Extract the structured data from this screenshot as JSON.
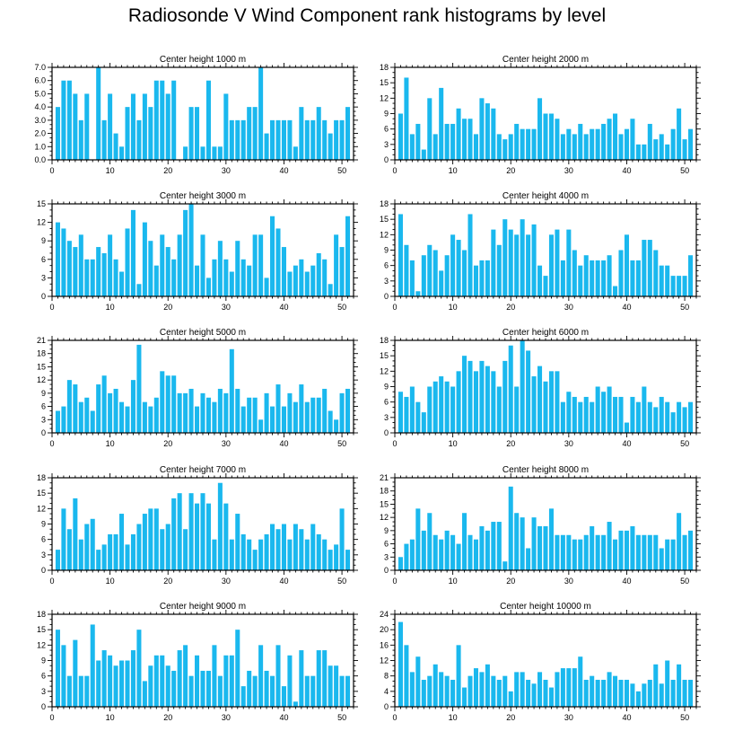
{
  "title": "Radiosonde V Wind Component rank histograms by level",
  "colors": {
    "bar": "#1ab8ee",
    "axis": "#000000",
    "background": "#ffffff"
  },
  "chart_data": [
    {
      "type": "bar",
      "title": "Center height 1000 m",
      "xlabel": "",
      "ylabel": "",
      "xlim": [
        0,
        52
      ],
      "ylim": [
        0,
        7
      ],
      "xticks": [
        0,
        10,
        20,
        30,
        40,
        50
      ],
      "xtick_labels": [
        "0",
        "10",
        "20",
        "30",
        "40",
        "50"
      ],
      "yticks": [
        0,
        1,
        2,
        3,
        4,
        5,
        6,
        7
      ],
      "ytick_labels": [
        "0.0",
        "1.0",
        "2.0",
        "3.0",
        "4.0",
        "5.0",
        "6.0",
        "7.0"
      ],
      "categories": [
        1,
        2,
        3,
        4,
        5,
        6,
        7,
        8,
        9,
        10,
        11,
        12,
        13,
        14,
        15,
        16,
        17,
        18,
        19,
        20,
        21,
        22,
        23,
        24,
        25,
        26,
        27,
        28,
        29,
        30,
        31,
        32,
        33,
        34,
        35,
        36,
        37,
        38,
        39,
        40,
        41,
        42,
        43,
        44,
        45,
        46,
        47,
        48,
        49,
        50,
        51
      ],
      "values": [
        4,
        6,
        6,
        5,
        3,
        5,
        0,
        7,
        3,
        5,
        2,
        1,
        4,
        5,
        3,
        5,
        4,
        6,
        6,
        5,
        6,
        0,
        1,
        4,
        4,
        1,
        6,
        1,
        1,
        5,
        3,
        3,
        3,
        4,
        4,
        7,
        2,
        3,
        3,
        3,
        3,
        1,
        4,
        3,
        3,
        4,
        3,
        2,
        3,
        3,
        4
      ]
    },
    {
      "type": "bar",
      "title": "Center height 2000 m",
      "xlabel": "",
      "ylabel": "",
      "xlim": [
        0,
        52
      ],
      "ylim": [
        0,
        18
      ],
      "xticks": [
        0,
        10,
        20,
        30,
        40,
        50
      ],
      "xtick_labels": [
        "0",
        "10",
        "20",
        "30",
        "40",
        "50"
      ],
      "yticks": [
        0,
        3,
        6,
        9,
        12,
        15,
        18
      ],
      "ytick_labels": [
        "0",
        "3",
        "6",
        "9",
        "12",
        "15",
        "18"
      ],
      "categories": [
        1,
        2,
        3,
        4,
        5,
        6,
        7,
        8,
        9,
        10,
        11,
        12,
        13,
        14,
        15,
        16,
        17,
        18,
        19,
        20,
        21,
        22,
        23,
        24,
        25,
        26,
        27,
        28,
        29,
        30,
        31,
        32,
        33,
        34,
        35,
        36,
        37,
        38,
        39,
        40,
        41,
        42,
        43,
        44,
        45,
        46,
        47,
        48,
        49,
        50,
        51
      ],
      "values": [
        9,
        16,
        5,
        7,
        2,
        12,
        5,
        14,
        7,
        7,
        10,
        8,
        8,
        5,
        12,
        11,
        10,
        5,
        4,
        5,
        7,
        6,
        6,
        6,
        12,
        9,
        9,
        8,
        5,
        6,
        5,
        7,
        5,
        6,
        6,
        7,
        8,
        9,
        5,
        6,
        8,
        3,
        3,
        7,
        4,
        5,
        3,
        6,
        10,
        4,
        6
      ]
    },
    {
      "type": "bar",
      "title": "Center height 3000 m",
      "xlabel": "",
      "ylabel": "",
      "xlim": [
        0,
        52
      ],
      "ylim": [
        0,
        15
      ],
      "xticks": [
        0,
        10,
        20,
        30,
        40,
        50
      ],
      "xtick_labels": [
        "0",
        "10",
        "20",
        "30",
        "40",
        "50"
      ],
      "yticks": [
        0,
        3,
        6,
        9,
        12,
        15
      ],
      "ytick_labels": [
        "0",
        "3",
        "6",
        "9",
        "12",
        "15"
      ],
      "categories": [
        1,
        2,
        3,
        4,
        5,
        6,
        7,
        8,
        9,
        10,
        11,
        12,
        13,
        14,
        15,
        16,
        17,
        18,
        19,
        20,
        21,
        22,
        23,
        24,
        25,
        26,
        27,
        28,
        29,
        30,
        31,
        32,
        33,
        34,
        35,
        36,
        37,
        38,
        39,
        40,
        41,
        42,
        43,
        44,
        45,
        46,
        47,
        48,
        49,
        50,
        51
      ],
      "values": [
        12,
        11,
        9,
        8,
        10,
        6,
        6,
        8,
        7,
        10,
        6,
        4,
        11,
        14,
        2,
        12,
        9,
        5,
        10,
        8,
        6,
        10,
        14,
        15,
        5,
        10,
        3,
        6,
        9,
        6,
        4,
        9,
        6,
        5,
        10,
        10,
        3,
        13,
        11,
        8,
        4,
        5,
        6,
        4,
        5,
        7,
        6,
        2,
        10,
        8,
        13
      ]
    },
    {
      "type": "bar",
      "title": "Center height 4000 m",
      "xlabel": "",
      "ylabel": "",
      "xlim": [
        0,
        52
      ],
      "ylim": [
        0,
        18
      ],
      "xticks": [
        0,
        10,
        20,
        30,
        40,
        50
      ],
      "xtick_labels": [
        "0",
        "10",
        "20",
        "30",
        "40",
        "50"
      ],
      "yticks": [
        0,
        3,
        6,
        9,
        12,
        15,
        18
      ],
      "ytick_labels": [
        "0",
        "3",
        "6",
        "9",
        "12",
        "15",
        "18"
      ],
      "categories": [
        1,
        2,
        3,
        4,
        5,
        6,
        7,
        8,
        9,
        10,
        11,
        12,
        13,
        14,
        15,
        16,
        17,
        18,
        19,
        20,
        21,
        22,
        23,
        24,
        25,
        26,
        27,
        28,
        29,
        30,
        31,
        32,
        33,
        34,
        35,
        36,
        37,
        38,
        39,
        40,
        41,
        42,
        43,
        44,
        45,
        46,
        47,
        48,
        49,
        50,
        51
      ],
      "values": [
        16,
        10,
        7,
        1,
        8,
        10,
        9,
        5,
        8,
        12,
        11,
        9,
        16,
        6,
        7,
        7,
        13,
        10,
        15,
        13,
        12,
        15,
        12,
        14,
        6,
        4,
        12,
        13,
        7,
        13,
        9,
        6,
        8,
        7,
        7,
        7,
        8,
        2,
        9,
        12,
        7,
        7,
        11,
        11,
        9,
        6,
        6,
        4,
        4,
        4,
        8
      ]
    },
    {
      "type": "bar",
      "title": "Center height 5000 m",
      "xlabel": "",
      "ylabel": "",
      "xlim": [
        0,
        52
      ],
      "ylim": [
        0,
        21
      ],
      "xticks": [
        0,
        10,
        20,
        30,
        40,
        50
      ],
      "xtick_labels": [
        "0",
        "10",
        "20",
        "30",
        "40",
        "50"
      ],
      "yticks": [
        0,
        3,
        6,
        9,
        12,
        15,
        18,
        21
      ],
      "ytick_labels": [
        "0",
        "3",
        "6",
        "9",
        "12",
        "15",
        "18",
        "21"
      ],
      "categories": [
        1,
        2,
        3,
        4,
        5,
        6,
        7,
        8,
        9,
        10,
        11,
        12,
        13,
        14,
        15,
        16,
        17,
        18,
        19,
        20,
        21,
        22,
        23,
        24,
        25,
        26,
        27,
        28,
        29,
        30,
        31,
        32,
        33,
        34,
        35,
        36,
        37,
        38,
        39,
        40,
        41,
        42,
        43,
        44,
        45,
        46,
        47,
        48,
        49,
        50,
        51
      ],
      "values": [
        5,
        6,
        12,
        11,
        7,
        8,
        5,
        11,
        13,
        9,
        10,
        7,
        6,
        12,
        20,
        7,
        6,
        8,
        14,
        13,
        13,
        9,
        9,
        10,
        6,
        9,
        8,
        7,
        10,
        9,
        19,
        10,
        6,
        8,
        8,
        3,
        9,
        6,
        11,
        6,
        9,
        7,
        11,
        7,
        8,
        8,
        10,
        5,
        3,
        9,
        10
      ]
    },
    {
      "type": "bar",
      "title": "Center height 6000 m",
      "xlabel": "",
      "ylabel": "",
      "xlim": [
        0,
        52
      ],
      "ylim": [
        0,
        18
      ],
      "xticks": [
        0,
        10,
        20,
        30,
        40,
        50
      ],
      "xtick_labels": [
        "0",
        "10",
        "20",
        "30",
        "40",
        "50"
      ],
      "yticks": [
        0,
        3,
        6,
        9,
        12,
        15,
        18
      ],
      "ytick_labels": [
        "0",
        "3",
        "6",
        "9",
        "12",
        "15",
        "18"
      ],
      "categories": [
        1,
        2,
        3,
        4,
        5,
        6,
        7,
        8,
        9,
        10,
        11,
        12,
        13,
        14,
        15,
        16,
        17,
        18,
        19,
        20,
        21,
        22,
        23,
        24,
        25,
        26,
        27,
        28,
        29,
        30,
        31,
        32,
        33,
        34,
        35,
        36,
        37,
        38,
        39,
        40,
        41,
        42,
        43,
        44,
        45,
        46,
        47,
        48,
        49,
        50,
        51
      ],
      "values": [
        8,
        7,
        9,
        6,
        4,
        9,
        10,
        11,
        10,
        9,
        12,
        15,
        14,
        12,
        14,
        13,
        12,
        9,
        14,
        17,
        9,
        18,
        16,
        11,
        13,
        10,
        12,
        12,
        6,
        8,
        7,
        6,
        7,
        6,
        9,
        8,
        9,
        7,
        7,
        2,
        7,
        6,
        9,
        6,
        5,
        7,
        6,
        4,
        6,
        5,
        6
      ]
    },
    {
      "type": "bar",
      "title": "Center height 7000 m",
      "xlabel": "",
      "ylabel": "",
      "xlim": [
        0,
        52
      ],
      "ylim": [
        0,
        18
      ],
      "xticks": [
        0,
        10,
        20,
        30,
        40,
        50
      ],
      "xtick_labels": [
        "0",
        "10",
        "20",
        "30",
        "40",
        "50"
      ],
      "yticks": [
        0,
        3,
        6,
        9,
        12,
        15,
        18
      ],
      "ytick_labels": [
        "0",
        "3",
        "6",
        "9",
        "12",
        "15",
        "18"
      ],
      "categories": [
        1,
        2,
        3,
        4,
        5,
        6,
        7,
        8,
        9,
        10,
        11,
        12,
        13,
        14,
        15,
        16,
        17,
        18,
        19,
        20,
        21,
        22,
        23,
        24,
        25,
        26,
        27,
        28,
        29,
        30,
        31,
        32,
        33,
        34,
        35,
        36,
        37,
        38,
        39,
        40,
        41,
        42,
        43,
        44,
        45,
        46,
        47,
        48,
        49,
        50,
        51
      ],
      "values": [
        4,
        12,
        8,
        14,
        6,
        9,
        10,
        4,
        5,
        7,
        7,
        11,
        5,
        7,
        9,
        11,
        12,
        12,
        8,
        9,
        14,
        15,
        8,
        15,
        13,
        15,
        13,
        6,
        17,
        13,
        6,
        11,
        7,
        6,
        4,
        6,
        7,
        9,
        8,
        9,
        6,
        9,
        8,
        6,
        9,
        7,
        6,
        4,
        5,
        12,
        4
      ]
    },
    {
      "type": "bar",
      "title": "Center height 8000 m",
      "xlabel": "",
      "ylabel": "",
      "xlim": [
        0,
        52
      ],
      "ylim": [
        0,
        21
      ],
      "xticks": [
        0,
        10,
        20,
        30,
        40,
        50
      ],
      "xtick_labels": [
        "0",
        "10",
        "20",
        "30",
        "40",
        "50"
      ],
      "yticks": [
        0,
        3,
        6,
        9,
        12,
        15,
        18,
        21
      ],
      "ytick_labels": [
        "0",
        "3",
        "6",
        "9",
        "12",
        "15",
        "18",
        "21"
      ],
      "categories": [
        1,
        2,
        3,
        4,
        5,
        6,
        7,
        8,
        9,
        10,
        11,
        12,
        13,
        14,
        15,
        16,
        17,
        18,
        19,
        20,
        21,
        22,
        23,
        24,
        25,
        26,
        27,
        28,
        29,
        30,
        31,
        32,
        33,
        34,
        35,
        36,
        37,
        38,
        39,
        40,
        41,
        42,
        43,
        44,
        45,
        46,
        47,
        48,
        49,
        50,
        51
      ],
      "values": [
        3,
        6,
        7,
        14,
        9,
        13,
        8,
        7,
        9,
        8,
        6,
        13,
        8,
        7,
        10,
        9,
        11,
        11,
        2,
        19,
        13,
        12,
        5,
        12,
        10,
        10,
        14,
        8,
        8,
        8,
        7,
        7,
        8,
        10,
        8,
        8,
        11,
        7,
        9,
        9,
        10,
        8,
        8,
        8,
        8,
        5,
        7,
        7,
        13,
        8,
        9
      ]
    },
    {
      "type": "bar",
      "title": "Center height 9000 m",
      "xlabel": "",
      "ylabel": "",
      "xlim": [
        0,
        52
      ],
      "ylim": [
        0,
        18
      ],
      "xticks": [
        0,
        10,
        20,
        30,
        40,
        50
      ],
      "xtick_labels": [
        "0",
        "10",
        "20",
        "30",
        "40",
        "50"
      ],
      "yticks": [
        0,
        3,
        6,
        9,
        12,
        15,
        18
      ],
      "ytick_labels": [
        "0",
        "3",
        "6",
        "9",
        "12",
        "15",
        "18"
      ],
      "categories": [
        1,
        2,
        3,
        4,
        5,
        6,
        7,
        8,
        9,
        10,
        11,
        12,
        13,
        14,
        15,
        16,
        17,
        18,
        19,
        20,
        21,
        22,
        23,
        24,
        25,
        26,
        27,
        28,
        29,
        30,
        31,
        32,
        33,
        34,
        35,
        36,
        37,
        38,
        39,
        40,
        41,
        42,
        43,
        44,
        45,
        46,
        47,
        48,
        49,
        50,
        51
      ],
      "values": [
        15,
        12,
        6,
        13,
        6,
        6,
        16,
        9,
        11,
        10,
        8,
        9,
        9,
        11,
        15,
        5,
        8,
        10,
        10,
        8,
        7,
        11,
        12,
        6,
        10,
        7,
        7,
        12,
        6,
        10,
        10,
        15,
        4,
        7,
        6,
        12,
        7,
        6,
        12,
        4,
        10,
        1,
        11,
        6,
        6,
        11,
        11,
        8,
        8,
        6,
        6
      ]
    },
    {
      "type": "bar",
      "title": "Center height 10000 m",
      "xlabel": "",
      "ylabel": "",
      "xlim": [
        0,
        52
      ],
      "ylim": [
        0,
        24
      ],
      "xticks": [
        0,
        10,
        20,
        30,
        40,
        50
      ],
      "xtick_labels": [
        "0",
        "10",
        "20",
        "30",
        "40",
        "50"
      ],
      "yticks": [
        0,
        4,
        8,
        12,
        16,
        20,
        24
      ],
      "ytick_labels": [
        "0",
        "4",
        "8",
        "12",
        "16",
        "20",
        "24"
      ],
      "categories": [
        1,
        2,
        3,
        4,
        5,
        6,
        7,
        8,
        9,
        10,
        11,
        12,
        13,
        14,
        15,
        16,
        17,
        18,
        19,
        20,
        21,
        22,
        23,
        24,
        25,
        26,
        27,
        28,
        29,
        30,
        31,
        32,
        33,
        34,
        35,
        36,
        37,
        38,
        39,
        40,
        41,
        42,
        43,
        44,
        45,
        46,
        47,
        48,
        49,
        50,
        51
      ],
      "values": [
        22,
        16,
        9,
        13,
        7,
        8,
        11,
        9,
        8,
        7,
        16,
        5,
        8,
        10,
        9,
        11,
        8,
        7,
        8,
        4,
        9,
        9,
        7,
        6,
        9,
        7,
        5,
        9,
        10,
        10,
        10,
        13,
        7,
        8,
        7,
        7,
        9,
        8,
        7,
        7,
        6,
        4,
        6,
        7,
        11,
        6,
        12,
        7,
        11,
        7,
        7
      ]
    }
  ]
}
